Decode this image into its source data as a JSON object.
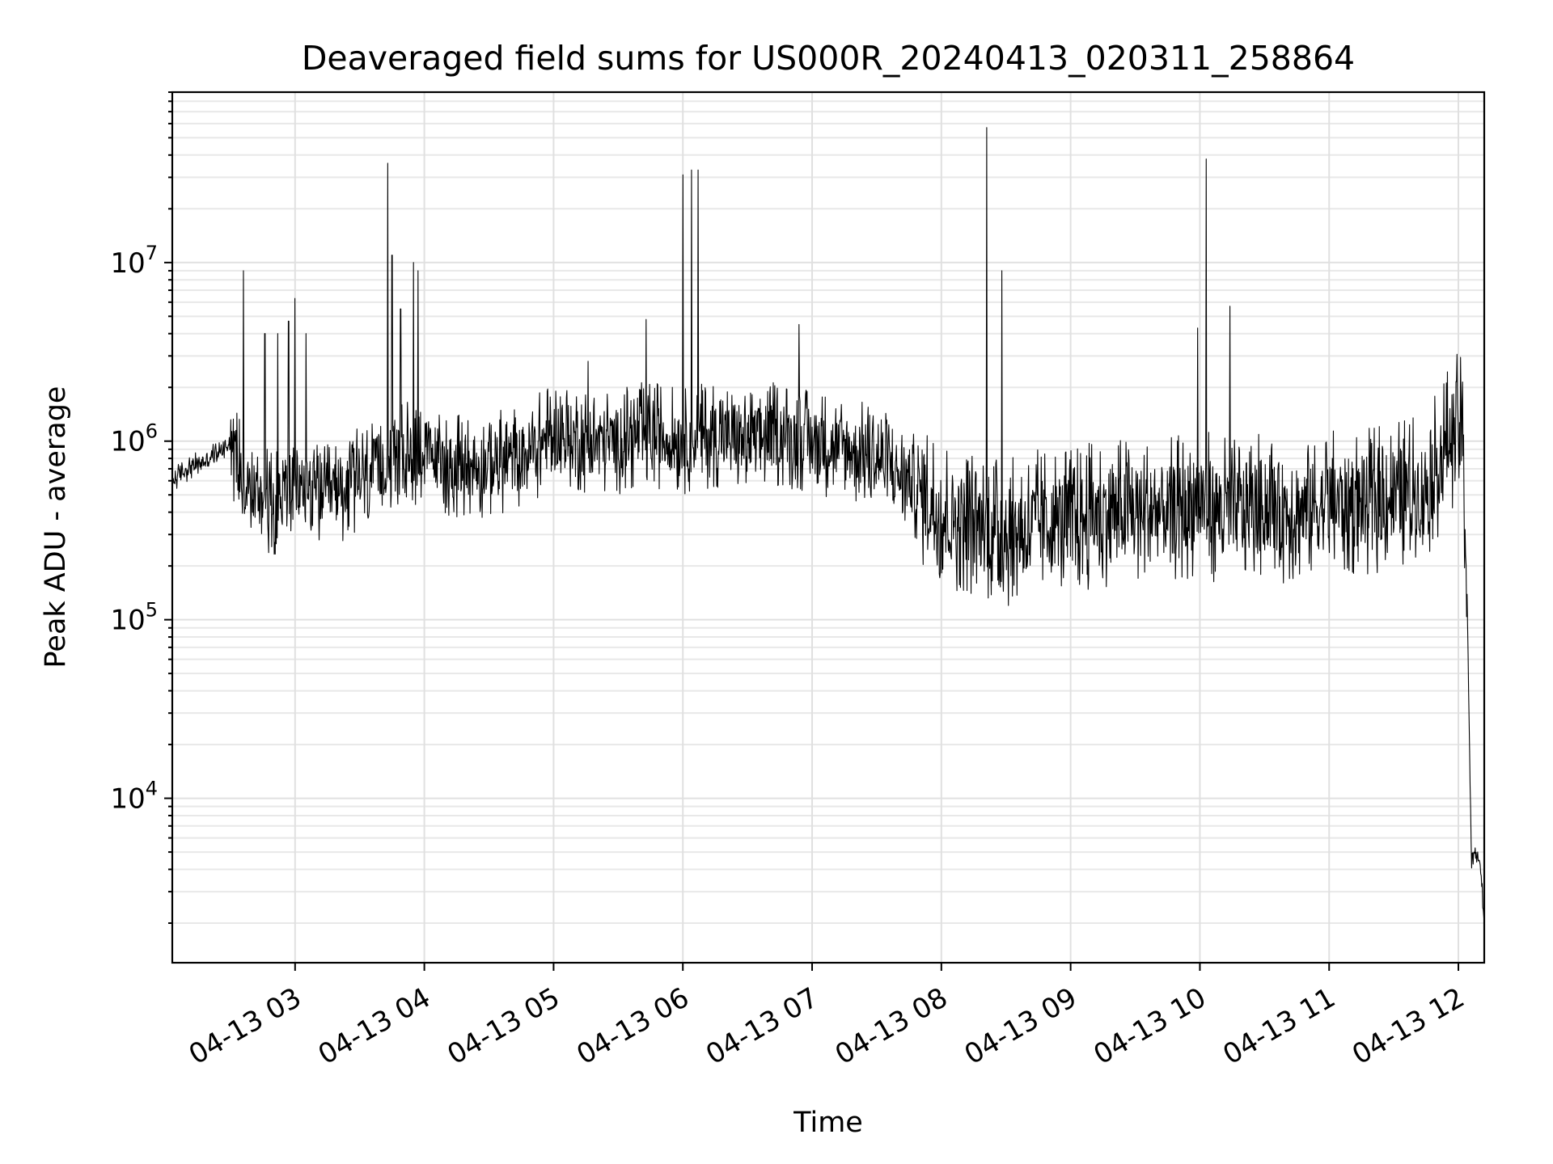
{
  "chart_data": {
    "type": "line",
    "title": "Deaveraged field sums for US000R_20240413_020311_258864",
    "xlabel": "Time",
    "ylabel": "Peak ADU - average",
    "x_ticks": [
      "04-13 03",
      "04-13 04",
      "04-13 05",
      "04-13 06",
      "04-13 07",
      "04-13 08",
      "04-13 09",
      "04-13 10",
      "04-13 11",
      "04-13 12"
    ],
    "y_ticks": [
      {
        "base": "10",
        "exp": "4",
        "value": 10000
      },
      {
        "base": "10",
        "exp": "5",
        "value": 100000
      },
      {
        "base": "10",
        "exp": "6",
        "value": 1000000
      },
      {
        "base": "10",
        "exp": "7",
        "value": 10000000
      }
    ],
    "y_scale": "log",
    "xlim": [
      "2024-04-13T02:03",
      "2024-04-13T12:12"
    ],
    "ylim": [
      1200,
      90000000
    ],
    "grid": true,
    "line_color": "#000000",
    "series": [
      {
        "x": [
          "2024-04-13T02:03",
          "2024-04-13T02:10",
          "2024-04-13T02:20",
          "2024-04-13T02:30",
          "2024-04-13T02:40",
          "2024-04-13T02:50",
          "2024-04-13T03:00",
          "2024-04-13T03:15",
          "2024-04-13T03:30",
          "2024-04-13T03:45",
          "2024-04-13T04:00",
          "2024-04-13T04:15",
          "2024-04-13T04:30",
          "2024-04-13T04:45",
          "2024-04-13T05:00",
          "2024-04-13T05:15",
          "2024-04-13T05:30",
          "2024-04-13T05:45",
          "2024-04-13T06:00",
          "2024-04-13T06:15",
          "2024-04-13T06:30",
          "2024-04-13T06:45",
          "2024-04-13T07:00",
          "2024-04-13T07:15",
          "2024-04-13T07:30",
          "2024-04-13T07:45",
          "2024-04-13T08:00",
          "2024-04-13T08:15",
          "2024-04-13T08:30",
          "2024-04-13T08:45",
          "2024-04-13T09:00",
          "2024-04-13T09:15",
          "2024-04-13T09:30",
          "2024-04-13T09:45",
          "2024-04-13T10:00",
          "2024-04-13T10:15",
          "2024-04-13T10:30",
          "2024-04-13T10:45",
          "2024-04-13T11:00",
          "2024-04-13T11:15",
          "2024-04-13T11:30",
          "2024-04-13T11:45",
          "2024-04-13T12:00",
          "2024-04-13T12:02",
          "2024-04-13T12:04",
          "2024-04-13T12:06",
          "2024-04-13T12:08",
          "2024-04-13T12:10",
          "2024-04-13T12:12"
        ],
        "values": [
          600000,
          700000,
          800000,
          1000000,
          500000,
          450000,
          550000,
          500000,
          600000,
          800000,
          900000,
          700000,
          750000,
          800000,
          1100000,
          1000000,
          1000000,
          1100000,
          1000000,
          1100000,
          1000000,
          1100000,
          1000000,
          900000,
          800000,
          600000,
          400000,
          350000,
          300000,
          350000,
          350000,
          400000,
          400000,
          400000,
          450000,
          400000,
          450000,
          400000,
          450000,
          450000,
          500000,
          550000,
          1300000,
          1000000,
          150000,
          4500,
          5000,
          4500,
          2000
        ]
      }
    ],
    "spikes": [
      {
        "x": "2024-04-13T02:36",
        "value": 9000000
      },
      {
        "x": "2024-04-13T02:46",
        "value": 4000000
      },
      {
        "x": "2024-04-13T02:52",
        "value": 4000000
      },
      {
        "x": "2024-04-13T02:57",
        "value": 4700000
      },
      {
        "x": "2024-04-13T03:00",
        "value": 6300000
      },
      {
        "x": "2024-04-13T03:05",
        "value": 4000000
      },
      {
        "x": "2024-04-13T03:43",
        "value": 36000000
      },
      {
        "x": "2024-04-13T03:45",
        "value": 11000000
      },
      {
        "x": "2024-04-13T03:49",
        "value": 5500000
      },
      {
        "x": "2024-04-13T03:55",
        "value": 10000000
      },
      {
        "x": "2024-04-13T03:57",
        "value": 9000000
      },
      {
        "x": "2024-04-13T05:16",
        "value": 2800000
      },
      {
        "x": "2024-04-13T05:43",
        "value": 4800000
      },
      {
        "x": "2024-04-13T06:00",
        "value": 31000000
      },
      {
        "x": "2024-04-13T06:04",
        "value": 33000000
      },
      {
        "x": "2024-04-13T06:07",
        "value": 33000000
      },
      {
        "x": "2024-04-13T06:54",
        "value": 4500000
      },
      {
        "x": "2024-04-13T08:21",
        "value": 57000000
      },
      {
        "x": "2024-04-13T08:28",
        "value": 9000000
      },
      {
        "x": "2024-04-13T09:59",
        "value": 4300000
      },
      {
        "x": "2024-04-13T10:03",
        "value": 38000000
      },
      {
        "x": "2024-04-13T10:14",
        "value": 5700000
      }
    ]
  }
}
